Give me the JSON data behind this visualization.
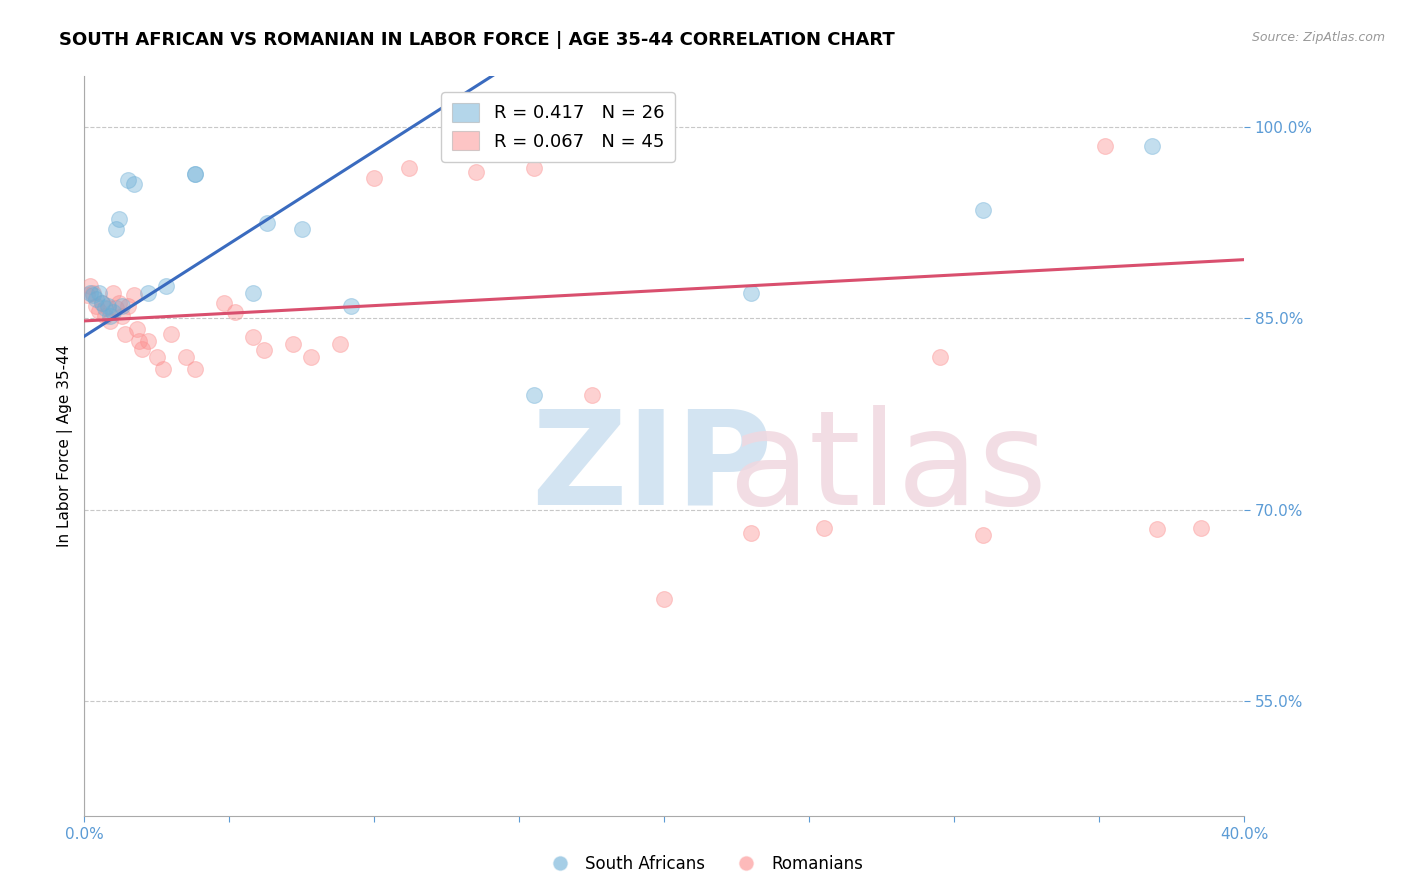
{
  "title": "SOUTH AFRICAN VS ROMANIAN IN LABOR FORCE | AGE 35-44 CORRELATION CHART",
  "source": "Source: ZipAtlas.com",
  "ylabel": "In Labor Force | Age 35-44",
  "xlabel": "",
  "xlim": [
    0.0,
    0.4
  ],
  "ylim": [
    0.46,
    1.04
  ],
  "yticks": [
    0.55,
    0.7,
    0.85,
    1.0
  ],
  "ytick_labels": [
    "55.0%",
    "70.0%",
    "85.0%",
    "100.0%"
  ],
  "xticks": [
    0.0,
    0.05,
    0.1,
    0.15,
    0.2,
    0.25,
    0.3,
    0.35,
    0.4
  ],
  "xtick_labels": [
    "0.0%",
    "",
    "",
    "",
    "",
    "",
    "",
    "",
    "40.0%"
  ],
  "south_african_x": [
    0.002,
    0.003,
    0.004,
    0.005,
    0.006,
    0.007,
    0.008,
    0.009,
    0.01,
    0.011,
    0.012,
    0.013,
    0.015,
    0.017,
    0.022,
    0.028,
    0.038,
    0.038,
    0.058,
    0.063,
    0.075,
    0.092,
    0.155,
    0.23,
    0.31,
    0.368
  ],
  "south_african_y": [
    0.87,
    0.868,
    0.865,
    0.87,
    0.862,
    0.858,
    0.86,
    0.852,
    0.855,
    0.92,
    0.928,
    0.86,
    0.958,
    0.955,
    0.87,
    0.875,
    0.963,
    0.963,
    0.87,
    0.925,
    0.92,
    0.86,
    0.79,
    0.87,
    0.935,
    0.985
  ],
  "romanian_x": [
    0.001,
    0.002,
    0.003,
    0.004,
    0.005,
    0.006,
    0.007,
    0.008,
    0.009,
    0.01,
    0.011,
    0.012,
    0.013,
    0.014,
    0.015,
    0.017,
    0.018,
    0.019,
    0.02,
    0.022,
    0.025,
    0.027,
    0.03,
    0.035,
    0.038,
    0.048,
    0.052,
    0.058,
    0.062,
    0.072,
    0.078,
    0.088,
    0.1,
    0.112,
    0.135,
    0.155,
    0.175,
    0.2,
    0.23,
    0.255,
    0.295,
    0.31,
    0.352,
    0.37,
    0.385
  ],
  "romanian_y": [
    0.868,
    0.875,
    0.87,
    0.86,
    0.856,
    0.862,
    0.852,
    0.858,
    0.848,
    0.87,
    0.858,
    0.862,
    0.852,
    0.838,
    0.86,
    0.868,
    0.842,
    0.832,
    0.826,
    0.832,
    0.82,
    0.81,
    0.838,
    0.82,
    0.81,
    0.862,
    0.855,
    0.835,
    0.825,
    0.83,
    0.82,
    0.83,
    0.96,
    0.968,
    0.965,
    0.968,
    0.79,
    0.63,
    0.682,
    0.686,
    0.82,
    0.68,
    0.985,
    0.685,
    0.686
  ],
  "sa_R": "0.417",
  "sa_N": "26",
  "ro_R": "0.067",
  "ro_N": "45",
  "sa_color": "#6baed6",
  "ro_color": "#fc8d8d",
  "sa_line_color": "#3a6bbf",
  "ro_line_color": "#d94f6e",
  "bg_color": "#ffffff",
  "tick_color": "#5b9bd5",
  "grid_color": "#c8c8c8",
  "title_fontsize": 13,
  "label_fontsize": 11,
  "tick_fontsize": 11,
  "legend_fontsize": 13,
  "marker_size": 130,
  "marker_alpha": 0.4,
  "line_width": 2.2,
  "sa_line_slope": 1.45,
  "sa_line_intercept": 0.836,
  "ro_line_slope": 0.12,
  "ro_line_intercept": 0.848
}
